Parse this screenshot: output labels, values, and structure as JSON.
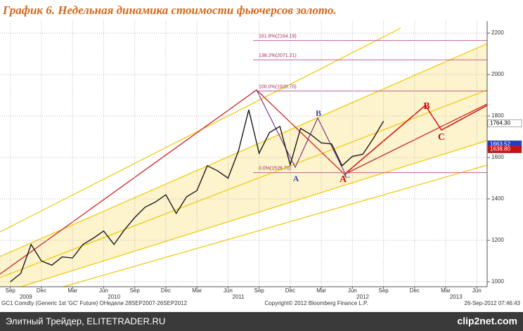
{
  "chart_data": {
    "type": "line",
    "title": "График 6.   Недельная динамика стоимости фьючерсов золото.",
    "x": [
      "2009-09",
      "2009-10",
      "2009-11",
      "2009-12",
      "2010-01",
      "2010-02",
      "2010-03",
      "2010-04",
      "2010-05",
      "2010-06",
      "2010-07",
      "2010-08",
      "2010-09",
      "2010-10",
      "2010-11",
      "2010-12",
      "2011-01",
      "2011-02",
      "2011-03",
      "2011-04",
      "2011-05",
      "2011-06",
      "2011-07",
      "2011-08",
      "2011-09",
      "2011-10",
      "2011-11",
      "2011-12",
      "2012-01",
      "2012-02",
      "2012-03",
      "2012-04",
      "2012-05",
      "2012-06",
      "2012-07",
      "2012-08",
      "2012-09"
    ],
    "series": [
      {
        "color": "#1a1a1a",
        "values": [
          1000,
          1040,
          1180,
          1100,
          1080,
          1120,
          1115,
          1180,
          1210,
          1245,
          1180,
          1250,
          1310,
          1360,
          1385,
          1420,
          1330,
          1410,
          1440,
          1560,
          1535,
          1500,
          1630,
          1830,
          1620,
          1720,
          1750,
          1565,
          1740,
          1710,
          1670,
          1665,
          1560,
          1605,
          1615,
          1690,
          1775
        ]
      }
    ],
    "xlim": [
      "2009-08",
      "2013-07"
    ],
    "xticks": [
      {
        "value": "2009-09",
        "label": "Sep"
      },
      {
        "value": "2009-12",
        "label": "Dec"
      },
      {
        "value": "2010-03",
        "label": "Mar"
      },
      {
        "value": "2010-06",
        "label": "Jun"
      },
      {
        "value": "2010-09",
        "label": "Sep"
      },
      {
        "value": "2010-12",
        "label": "Dec"
      },
      {
        "value": "2011-03",
        "label": "Mar"
      },
      {
        "value": "2011-06",
        "label": "Jun"
      },
      {
        "value": "2011-09",
        "label": "Sep"
      },
      {
        "value": "2011-12",
        "label": "Dec"
      },
      {
        "value": "2012-03",
        "label": "Mar"
      },
      {
        "value": "2012-06",
        "label": "Jun"
      },
      {
        "value": "2012-09",
        "label": "Sep"
      },
      {
        "value": "2012-12",
        "label": "Dec"
      },
      {
        "value": "2013-03",
        "label": "Mar"
      },
      {
        "value": "2013-06",
        "label": "Jun"
      }
    ],
    "year_labels": [
      2009,
      2010,
      2011,
      2012,
      2013
    ],
    "ylim": [
      976,
      2258
    ],
    "yticks": [
      1000,
      1200,
      1400,
      1600,
      1800,
      2000,
      2200
    ],
    "grid": true,
    "fib_levels": [
      {
        "value": 2164.19,
        "label": "161.8%(2164.19)"
      },
      {
        "value": 2071.21,
        "label": "138.2%(2071.21)"
      },
      {
        "value": 1920.7,
        "label": "100.0%(1920.70)"
      },
      {
        "value": 1526.7,
        "label": "0.0%(1526.70)"
      }
    ],
    "price_tags": [
      {
        "value": 1764.3,
        "label": "1764.30",
        "color": "#ffffff"
      },
      {
        "value": 1663.52,
        "label": "1663.52",
        "color": "#1f3fbf"
      },
      {
        "value": 1638.8,
        "label": "1638.80",
        "color": "#cc1111"
      }
    ],
    "annotations": [
      "A",
      "B",
      "C",
      "A",
      "B",
      "C"
    ],
    "footer": [
      "GC1 Comdty (Generic 1st 'GC' Future) ОНедели 28SEP2007-26SEP2012",
      "Copyright© 2012 Bloomberg Finance L.P.",
      "26-Sep-2012 07:46:43"
    ],
    "source": "Элитный Трейдер, ELITETRADER.RU",
    "watermark": "clip2net.com"
  }
}
